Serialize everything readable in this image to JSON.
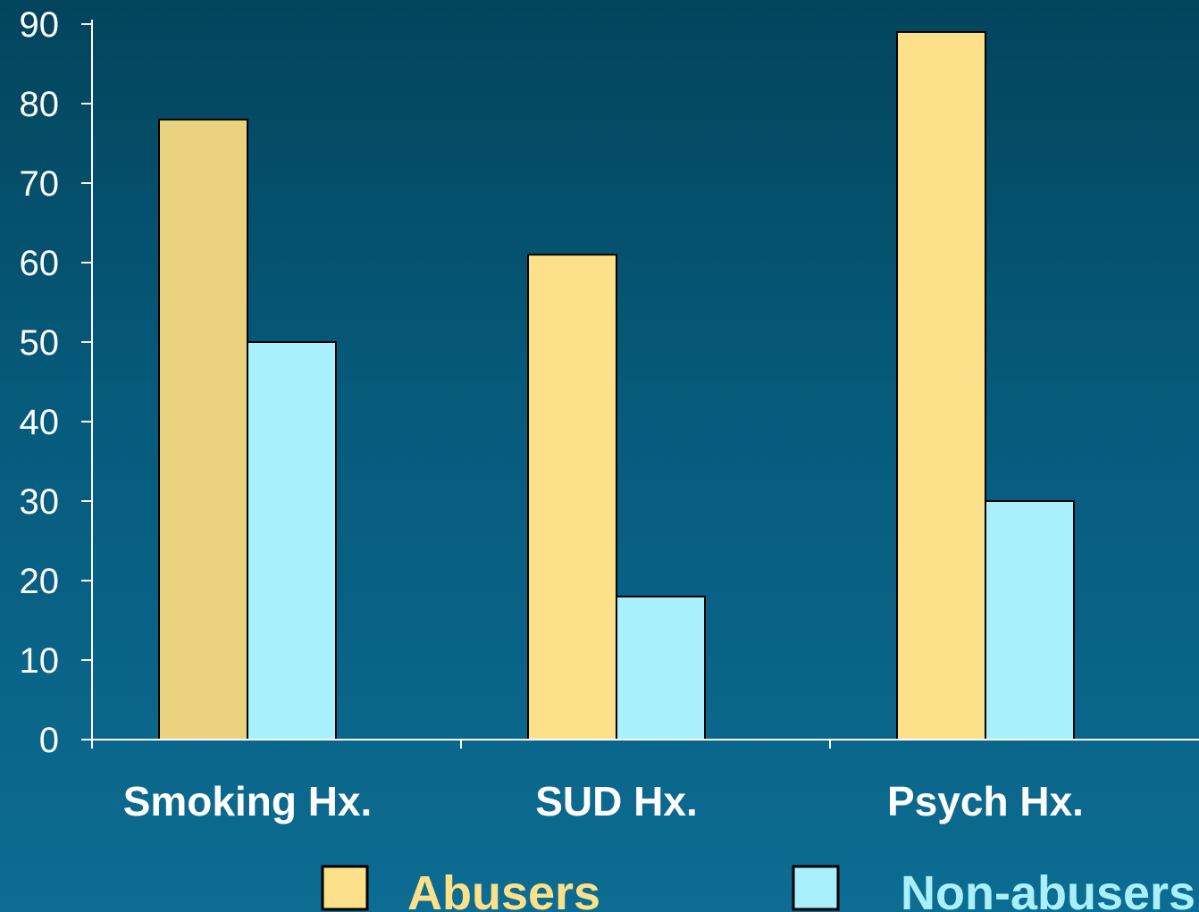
{
  "chart_data": {
    "type": "bar",
    "categories": [
      "Smoking Hx.",
      "SUD Hx.",
      "Psych Hx."
    ],
    "series": [
      {
        "name": "Abusers",
        "values": [
          78,
          61,
          89
        ],
        "color": "#fde08a"
      },
      {
        "name": "Non-abusers",
        "values": [
          50,
          18,
          30
        ],
        "color": "#a8f1fc"
      }
    ],
    "first_bar_color": "#ead27e",
    "yticks": [
      0,
      10,
      20,
      30,
      40,
      50,
      60,
      70,
      80,
      90
    ],
    "ylim": [
      0,
      90
    ],
    "title": "",
    "xlabel": "",
    "ylabel": "",
    "grid": false,
    "legend_position": "bottom",
    "axis_color": "#ffffff"
  }
}
